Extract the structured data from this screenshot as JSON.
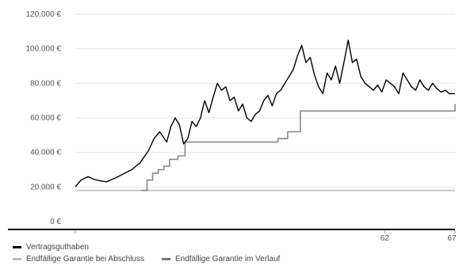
{
  "chart_data": {
    "type": "line",
    "title": "",
    "xlabel": "",
    "ylabel": "",
    "ylim": [
      0,
      120000
    ],
    "xlim": [
      40,
      67
    ],
    "x_ticks": [
      {
        "value": 62,
        "label": "62"
      },
      {
        "value": 67,
        "label": "67"
      }
    ],
    "y_ticks": [
      {
        "value": 0,
        "label": "0 €"
      },
      {
        "value": 20000,
        "label": "20.000 €"
      },
      {
        "value": 40000,
        "label": "40.000 €"
      },
      {
        "value": 60000,
        "label": "60.000 €"
      },
      {
        "value": 80000,
        "label": "80.000 €"
      },
      {
        "value": 100000,
        "label": "100.000 €"
      },
      {
        "value": 120000,
        "label": "120.000 €"
      }
    ],
    "grid": true,
    "legend_position": "bottom-left",
    "series": [
      {
        "name": "Vertragsguthaben",
        "color": "#000000",
        "x": [
          40,
          40.4,
          40.9,
          41.3,
          41.8,
          42.2,
          42.8,
          43.4,
          44,
          44.6,
          45.2,
          45.6,
          46,
          46.5,
          46.8,
          47.1,
          47.4,
          47.7,
          48,
          48.3,
          48.6,
          48.9,
          49.2,
          49.5,
          49.8,
          50.1,
          50.4,
          50.7,
          51,
          51.3,
          51.6,
          51.9,
          52.2,
          52.5,
          52.8,
          53.1,
          53.4,
          53.7,
          54,
          54.3,
          54.6,
          54.9,
          55.2,
          55.5,
          55.8,
          56.1,
          56.4,
          56.7,
          57,
          57.3,
          57.6,
          57.9,
          58.2,
          58.5,
          58.8,
          59.1,
          59.4,
          59.7,
          60,
          60.3,
          60.6,
          60.9,
          61.2,
          61.5,
          61.8,
          62.1,
          62.4,
          62.7,
          63,
          63.3,
          63.6,
          63.9,
          64.2,
          64.5,
          64.8,
          65.1,
          65.4,
          65.7,
          66,
          66.3,
          66.6,
          67
        ],
        "values": [
          20000,
          24000,
          26000,
          24500,
          23500,
          23000,
          25000,
          27500,
          30000,
          34000,
          41000,
          48000,
          52000,
          46000,
          55000,
          60000,
          56000,
          45000,
          48000,
          58000,
          55000,
          60000,
          70000,
          63000,
          72000,
          80000,
          76000,
          78000,
          70000,
          72000,
          64000,
          68000,
          60000,
          58000,
          62000,
          64000,
          70000,
          73000,
          67000,
          74000,
          76000,
          80000,
          84000,
          88000,
          96000,
          102000,
          92000,
          95000,
          85000,
          78000,
          74000,
          86000,
          82000,
          90000,
          80000,
          92000,
          105000,
          92000,
          94000,
          84000,
          80000,
          78000,
          76000,
          79000,
          75000,
          82000,
          80000,
          78000,
          74000,
          86000,
          82000,
          78000,
          76000,
          82000,
          78000,
          76000,
          80000,
          77000,
          75000,
          76000,
          74000,
          74000
        ]
      },
      {
        "name": "Endfällige Garantie bei Abschluss",
        "color": "#bbbbbb",
        "x": [
          40,
          67
        ],
        "values": [
          18000,
          18000
        ]
      },
      {
        "name": "Endfällige Garantie im Verlauf",
        "color": "#888888",
        "x": [
          44.7,
          45.1,
          45.5,
          45.9,
          46.3,
          46.7,
          47.3,
          47.8,
          48.3,
          49,
          53.7,
          54.4,
          55.1,
          56,
          67
        ],
        "values": [
          18000,
          24000,
          28000,
          30000,
          32000,
          36000,
          38000,
          46000,
          46000,
          46000,
          46000,
          48000,
          52000,
          64000,
          68000
        ]
      }
    ]
  },
  "legend": {
    "items": [
      {
        "label": "Vertragsguthaben",
        "color": "#000000"
      },
      {
        "label": "Endfällige Garantie bei Abschluss",
        "color": "#bbbbbb"
      },
      {
        "label": "Endfällige Garantie im Verlauf",
        "color": "#777777"
      }
    ]
  }
}
